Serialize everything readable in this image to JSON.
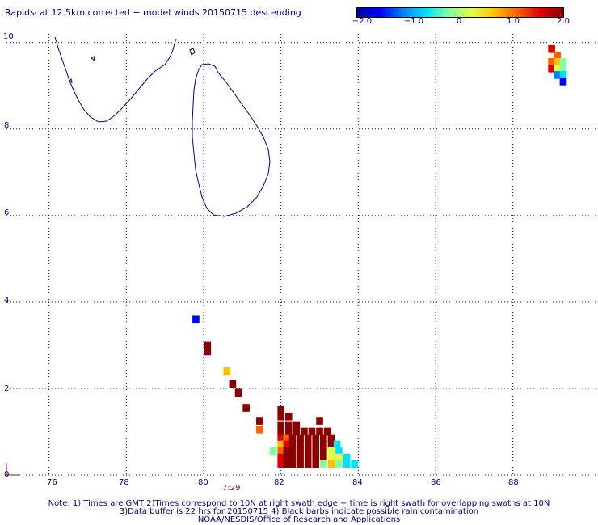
{
  "title": "Rapidscat 12.5km corrected − model winds 20150715 descending",
  "colorbar": {
    "ticks": [
      "−2.0",
      "−1.0",
      "0",
      "1.0",
      "2.0"
    ],
    "min": -2.0,
    "max": 2.0,
    "colors": [
      "#0000a0",
      "#0000ff",
      "#0080ff",
      "#00e0ff",
      "#80ffa0",
      "#e0ff40",
      "#ffc000",
      "#ff6000",
      "#e00000",
      "#8b0000"
    ]
  },
  "axes": {
    "x_ticks": [
      "76",
      "78",
      "80",
      "82",
      "84",
      "86",
      "88"
    ],
    "y_ticks": [
      "10",
      "8",
      "6",
      "4",
      "2",
      "0"
    ],
    "x_range": [
      74.9,
      90.2
    ],
    "y_range": [
      0,
      10.2
    ]
  },
  "time_label": "7:29",
  "notes": {
    "line1": "Note: 1) Times are GMT 2)Times correspond to 10N at right swath edge − time is right swath for overlapping swaths at 10N",
    "line2": "3)Data buffer is 22 hrs for 20150715 4) Black barbs indicate possible rain contamination",
    "line3": "NOAA/NESDIS/Office of Research and Applications"
  },
  "chart_data": {
    "type": "heatmap",
    "cell_size_deg": [
      0.18,
      0.18
    ],
    "cells": [
      {
        "lon": 79.8,
        "lat": 3.6,
        "value": -1.5
      },
      {
        "lon": 80.1,
        "lat": 3.0,
        "value": 2.0
      },
      {
        "lon": 80.1,
        "lat": 2.85,
        "value": 2.0
      },
      {
        "lon": 80.6,
        "lat": 2.4,
        "value": 0.6
      },
      {
        "lon": 80.75,
        "lat": 2.1,
        "value": 2.0
      },
      {
        "lon": 80.9,
        "lat": 1.9,
        "value": 2.0
      },
      {
        "lon": 81.1,
        "lat": 1.55,
        "value": 2.0
      },
      {
        "lon": 81.45,
        "lat": 1.25,
        "value": 2.0
      },
      {
        "lon": 81.45,
        "lat": 1.05,
        "value": 1.1
      },
      {
        "lon": 83.0,
        "lat": 1.25,
        "value": 1.7
      },
      {
        "lon": 82.0,
        "lat": 1.5,
        "value": 1.8
      },
      {
        "lon": 82.0,
        "lat": 1.35,
        "value": 2.0
      },
      {
        "lon": 82.2,
        "lat": 1.35,
        "value": 2.0
      },
      {
        "lon": 82.0,
        "lat": 1.15,
        "value": 2.0
      },
      {
        "lon": 82.2,
        "lat": 1.15,
        "value": 2.0
      },
      {
        "lon": 82.4,
        "lat": 1.15,
        "value": 2.0
      },
      {
        "lon": 82.0,
        "lat": 1.0,
        "value": 1.8
      },
      {
        "lon": 82.2,
        "lat": 1.0,
        "value": 2.0
      },
      {
        "lon": 82.4,
        "lat": 1.0,
        "value": 2.0
      },
      {
        "lon": 82.6,
        "lat": 1.0,
        "value": 2.0
      },
      {
        "lon": 82.8,
        "lat": 1.0,
        "value": 2.0
      },
      {
        "lon": 83.0,
        "lat": 1.0,
        "value": 2.0
      },
      {
        "lon": 83.2,
        "lat": 1.0,
        "value": 2.0
      },
      {
        "lon": 82.0,
        "lat": 0.85,
        "value": 1.5
      },
      {
        "lon": 82.15,
        "lat": 0.85,
        "value": 1.1
      },
      {
        "lon": 82.3,
        "lat": 0.85,
        "value": 2.0
      },
      {
        "lon": 82.5,
        "lat": 0.85,
        "value": 2.0
      },
      {
        "lon": 82.7,
        "lat": 0.85,
        "value": 2.0
      },
      {
        "lon": 82.9,
        "lat": 0.85,
        "value": 2.0
      },
      {
        "lon": 83.1,
        "lat": 0.85,
        "value": 2.0
      },
      {
        "lon": 83.3,
        "lat": 0.85,
        "value": 1.8
      },
      {
        "lon": 82.0,
        "lat": 0.7,
        "value": 0.6
      },
      {
        "lon": 82.15,
        "lat": 0.7,
        "value": 1.2
      },
      {
        "lon": 82.3,
        "lat": 0.7,
        "value": 2.0
      },
      {
        "lon": 82.5,
        "lat": 0.7,
        "value": 2.0
      },
      {
        "lon": 82.7,
        "lat": 0.7,
        "value": 2.0
      },
      {
        "lon": 82.9,
        "lat": 0.7,
        "value": 2.0
      },
      {
        "lon": 83.1,
        "lat": 0.7,
        "value": 2.0
      },
      {
        "lon": 83.3,
        "lat": 0.7,
        "value": 1.9
      },
      {
        "lon": 83.45,
        "lat": 0.7,
        "value": -0.5
      },
      {
        "lon": 81.8,
        "lat": 0.55,
        "value": -0.3
      },
      {
        "lon": 82.0,
        "lat": 0.55,
        "value": 1.0
      },
      {
        "lon": 82.15,
        "lat": 0.55,
        "value": 1.6
      },
      {
        "lon": 82.3,
        "lat": 0.55,
        "value": 2.0
      },
      {
        "lon": 82.5,
        "lat": 0.55,
        "value": 2.0
      },
      {
        "lon": 82.7,
        "lat": 0.55,
        "value": 2.0
      },
      {
        "lon": 82.9,
        "lat": 0.55,
        "value": 2.0
      },
      {
        "lon": 83.1,
        "lat": 0.55,
        "value": 2.0
      },
      {
        "lon": 83.3,
        "lat": 0.55,
        "value": 0.3
      },
      {
        "lon": 83.5,
        "lat": 0.55,
        "value": -0.5
      },
      {
        "lon": 82.0,
        "lat": 0.4,
        "value": 1.2
      },
      {
        "lon": 82.15,
        "lat": 0.4,
        "value": 1.8
      },
      {
        "lon": 82.3,
        "lat": 0.4,
        "value": 2.0
      },
      {
        "lon": 82.5,
        "lat": 0.4,
        "value": 2.0
      },
      {
        "lon": 82.7,
        "lat": 0.4,
        "value": 2.0
      },
      {
        "lon": 82.9,
        "lat": 0.4,
        "value": 2.0
      },
      {
        "lon": 83.1,
        "lat": 0.4,
        "value": 2.0
      },
      {
        "lon": 83.3,
        "lat": 0.4,
        "value": 0.3
      },
      {
        "lon": 83.5,
        "lat": 0.4,
        "value": 0.3
      },
      {
        "lon": 83.7,
        "lat": 0.4,
        "value": -0.6
      },
      {
        "lon": 82.0,
        "lat": 0.25,
        "value": 1.4
      },
      {
        "lon": 82.15,
        "lat": 0.25,
        "value": 2.0
      },
      {
        "lon": 82.3,
        "lat": 0.25,
        "value": 2.0
      },
      {
        "lon": 82.5,
        "lat": 0.25,
        "value": 2.0
      },
      {
        "lon": 82.7,
        "lat": 0.25,
        "value": 2.0
      },
      {
        "lon": 82.9,
        "lat": 0.25,
        "value": 2.0
      },
      {
        "lon": 83.1,
        "lat": 0.25,
        "value": -0.3
      },
      {
        "lon": 83.3,
        "lat": 0.25,
        "value": 0.4
      },
      {
        "lon": 83.5,
        "lat": 0.25,
        "value": -0.4
      },
      {
        "lon": 83.7,
        "lat": 0.25,
        "value": -0.5
      },
      {
        "lon": 83.9,
        "lat": 0.25,
        "value": -0.6
      },
      {
        "lon": 89.0,
        "lat": 9.85,
        "value": 1.2
      },
      {
        "lon": 89.15,
        "lat": 9.7,
        "value": 1.1
      },
      {
        "lon": 89.0,
        "lat": 9.55,
        "value": 0.8
      },
      {
        "lon": 89.15,
        "lat": 9.55,
        "value": 0.5
      },
      {
        "lon": 89.3,
        "lat": 9.55,
        "value": -0.3
      },
      {
        "lon": 89.0,
        "lat": 9.4,
        "value": 1.3
      },
      {
        "lon": 89.15,
        "lat": 9.4,
        "value": 0.3
      },
      {
        "lon": 89.3,
        "lat": 9.4,
        "value": -0.4
      },
      {
        "lon": 89.15,
        "lat": 9.25,
        "value": -1.0
      },
      {
        "lon": 89.3,
        "lat": 9.25,
        "value": -0.6
      },
      {
        "lon": 89.3,
        "lat": 9.1,
        "value": -1.4
      }
    ]
  }
}
